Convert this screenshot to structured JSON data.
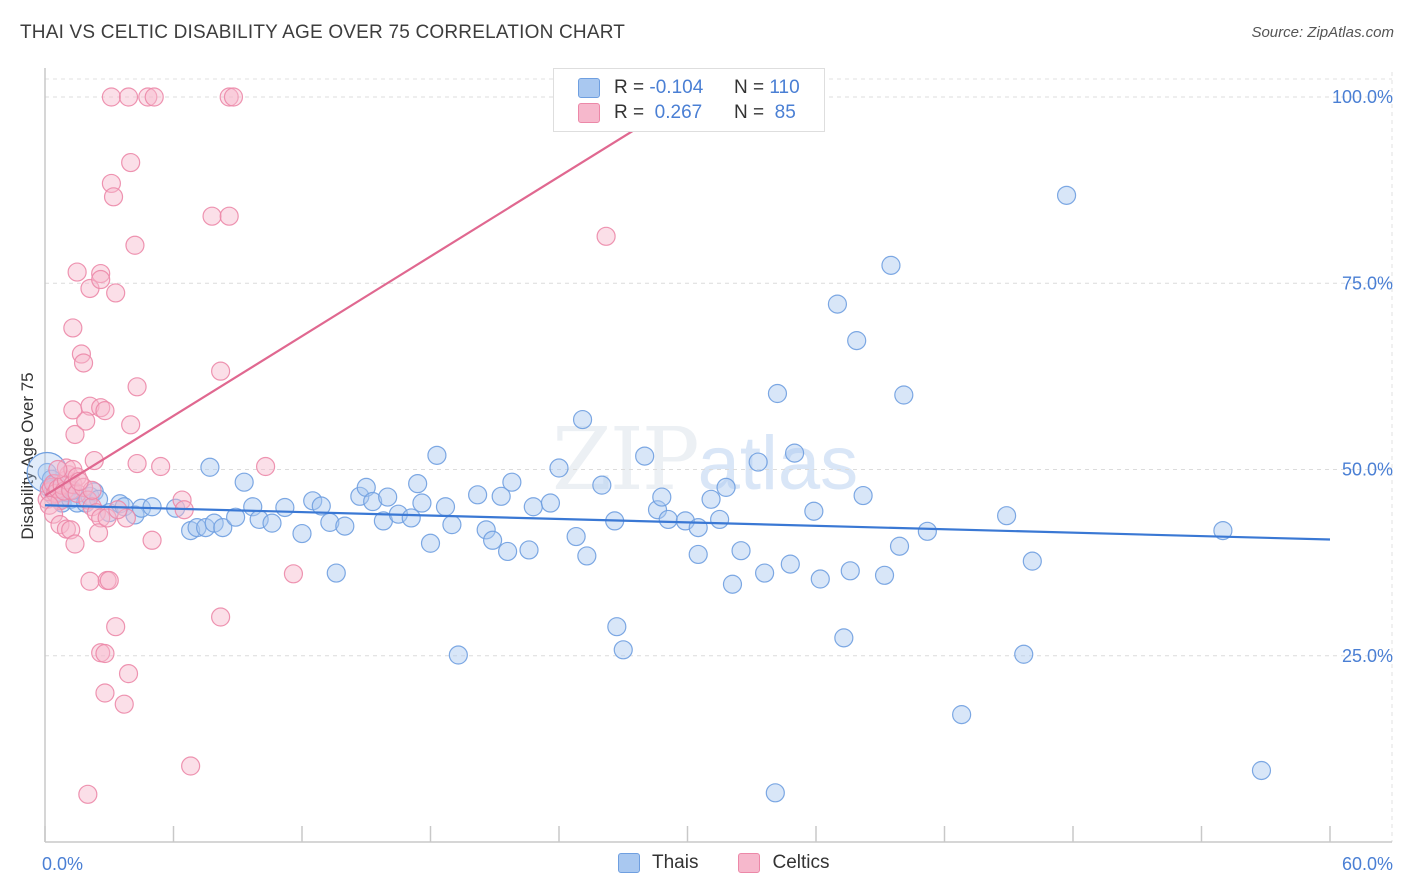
{
  "header": {
    "title": "THAI VS CELTIC DISABILITY AGE OVER 75 CORRELATION CHART",
    "source": "Source: ZipAtlas.com"
  },
  "legend": {
    "rows": [
      {
        "r_label": "R =",
        "r_value": "-0.104",
        "n_label": "N =",
        "n_value": "110"
      },
      {
        "r_label": "R =",
        "r_value": "0.267",
        "n_label": "N =",
        "n_value": "85"
      }
    ],
    "series": [
      "Thais",
      "Celtics"
    ]
  },
  "watermark": {
    "zip": "ZIP",
    "atlas": "atlas"
  },
  "colors": {
    "thais_fill": "#a9c8f0",
    "thais_stroke": "#6f9fe0",
    "thais_line": "#3a78d4",
    "celtics_fill": "#f6b8cc",
    "celtics_stroke": "#ec88a8",
    "celtics_line": "#e06890",
    "tick_text": "#4a7fd4"
  },
  "chart_data": {
    "type": "scatter",
    "title": "THAI VS CELTIC DISABILITY AGE OVER 75 CORRELATION CHART",
    "xlabel": "",
    "ylabel": "Disability Age Over 75",
    "xlim": [
      0,
      60
    ],
    "ylim": [
      0,
      104
    ],
    "x_tick_labels": [
      "0.0%",
      "60.0%"
    ],
    "y_ticks": [
      25,
      50,
      75,
      100
    ],
    "y_tick_labels": [
      "25.0%",
      "50.0%",
      "75.0%",
      "100.0%"
    ],
    "grid": true,
    "series": [
      {
        "name": "Thais",
        "r": -0.104,
        "n": 110,
        "trend": {
          "x": [
            0,
            60
          ],
          "y": [
            45.2,
            40.6
          ]
        },
        "points": [
          [
            0.1,
            49.6
          ],
          [
            0.2,
            47.5
          ],
          [
            0.3,
            48.7
          ],
          [
            0.4,
            46.5
          ],
          [
            0.5,
            48.1
          ],
          [
            0.6,
            47.0
          ],
          [
            0.7,
            46.0
          ],
          [
            0.8,
            45.5
          ],
          [
            1.0,
            46.9
          ],
          [
            1.2,
            46.0
          ],
          [
            1.5,
            45.5
          ],
          [
            1.9,
            45.5
          ],
          [
            2.1,
            46.4
          ],
          [
            2.3,
            47.0
          ],
          [
            2.5,
            46.0
          ],
          [
            3.0,
            44.2
          ],
          [
            3.5,
            45.4
          ],
          [
            3.7,
            45.0
          ],
          [
            4.2,
            43.9
          ],
          [
            4.5,
            44.8
          ],
          [
            5.0,
            45.0
          ],
          [
            6.1,
            44.8
          ],
          [
            6.8,
            41.8
          ],
          [
            7.1,
            42.2
          ],
          [
            7.5,
            42.2
          ],
          [
            7.7,
            50.3
          ],
          [
            7.9,
            42.8
          ],
          [
            8.3,
            42.2
          ],
          [
            8.9,
            43.6
          ],
          [
            9.3,
            48.3
          ],
          [
            9.7,
            45.0
          ],
          [
            10.0,
            43.3
          ],
          [
            10.6,
            42.8
          ],
          [
            11.2,
            44.9
          ],
          [
            12.0,
            41.4
          ],
          [
            12.5,
            45.8
          ],
          [
            12.9,
            45.1
          ],
          [
            13.3,
            42.9
          ],
          [
            13.6,
            36.1
          ],
          [
            14.0,
            42.4
          ],
          [
            14.7,
            46.4
          ],
          [
            15.0,
            47.6
          ],
          [
            15.3,
            45.7
          ],
          [
            15.8,
            43.1
          ],
          [
            16.0,
            46.3
          ],
          [
            16.5,
            44.0
          ],
          [
            17.1,
            43.5
          ],
          [
            17.4,
            48.1
          ],
          [
            17.6,
            45.5
          ],
          [
            18.0,
            40.1
          ],
          [
            18.3,
            51.9
          ],
          [
            18.7,
            45.0
          ],
          [
            19.0,
            42.6
          ],
          [
            19.3,
            25.1
          ],
          [
            20.2,
            46.6
          ],
          [
            20.6,
            41.9
          ],
          [
            20.9,
            40.5
          ],
          [
            21.3,
            46.4
          ],
          [
            21.6,
            39.0
          ],
          [
            21.8,
            48.3
          ],
          [
            22.6,
            39.2
          ],
          [
            22.8,
            45.0
          ],
          [
            23.6,
            45.5
          ],
          [
            24.0,
            50.2
          ],
          [
            24.8,
            41.0
          ],
          [
            25.3,
            38.4
          ],
          [
            25.1,
            56.7
          ],
          [
            26.0,
            47.9
          ],
          [
            26.6,
            43.1
          ],
          [
            26.7,
            28.9
          ],
          [
            27.0,
            25.8
          ],
          [
            28.0,
            51.8
          ],
          [
            28.6,
            44.6
          ],
          [
            28.8,
            46.3
          ],
          [
            29.1,
            43.3
          ],
          [
            29.9,
            43.1
          ],
          [
            30.5,
            38.6
          ],
          [
            30.5,
            42.2
          ],
          [
            31.1,
            46.0
          ],
          [
            31.5,
            43.3
          ],
          [
            31.8,
            47.6
          ],
          [
            32.1,
            34.6
          ],
          [
            32.5,
            39.1
          ],
          [
            33.3,
            51.0
          ],
          [
            33.6,
            36.1
          ],
          [
            34.2,
            60.2
          ],
          [
            34.8,
            37.3
          ],
          [
            35.0,
            52.2
          ],
          [
            35.9,
            44.4
          ],
          [
            36.2,
            35.3
          ],
          [
            37.0,
            72.2
          ],
          [
            37.3,
            27.4
          ],
          [
            37.6,
            36.4
          ],
          [
            37.9,
            67.3
          ],
          [
            38.2,
            46.5
          ],
          [
            39.2,
            35.8
          ],
          [
            39.5,
            77.4
          ],
          [
            39.9,
            39.7
          ],
          [
            40.1,
            60.0
          ],
          [
            41.2,
            41.7
          ],
          [
            42.8,
            17.1
          ],
          [
            44.9,
            43.8
          ],
          [
            45.7,
            25.2
          ],
          [
            46.1,
            37.7
          ],
          [
            47.7,
            86.8
          ],
          [
            55.0,
            41.8
          ],
          [
            56.8,
            9.6
          ],
          [
            34.1,
            6.6
          ],
          [
            0.4,
            47.4
          ],
          [
            1.3,
            47.2
          ]
        ]
      },
      {
        "name": "Celtics",
        "r": 0.267,
        "n": 85,
        "trend": {
          "x": [
            0,
            30
          ],
          "y": [
            46.5,
            100
          ]
        },
        "points": [
          [
            0.1,
            46.0
          ],
          [
            0.2,
            47.0
          ],
          [
            0.3,
            47.6
          ],
          [
            0.4,
            48.1
          ],
          [
            0.5,
            46.8
          ],
          [
            0.6,
            47.4
          ],
          [
            0.7,
            45.8
          ],
          [
            0.8,
            47.9
          ],
          [
            0.9,
            47.1
          ],
          [
            1.0,
            48.6
          ],
          [
            1.1,
            49.3
          ],
          [
            1.2,
            47.2
          ],
          [
            1.3,
            48.0
          ],
          [
            1.5,
            46.8
          ],
          [
            0.2,
            45.2
          ],
          [
            0.4,
            44.0
          ],
          [
            0.7,
            42.6
          ],
          [
            1.0,
            42.0
          ],
          [
            1.2,
            41.9
          ],
          [
            1.4,
            40.0
          ],
          [
            1.0,
            50.2
          ],
          [
            1.3,
            50.0
          ],
          [
            1.5,
            49.0
          ],
          [
            1.8,
            47.6
          ],
          [
            2.0,
            45.9
          ],
          [
            2.2,
            45.0
          ],
          [
            2.4,
            44.2
          ],
          [
            2.6,
            43.5
          ],
          [
            2.5,
            41.5
          ],
          [
            2.9,
            43.5
          ],
          [
            2.3,
            51.2
          ],
          [
            1.4,
            54.7
          ],
          [
            1.3,
            58.0
          ],
          [
            2.1,
            58.5
          ],
          [
            2.6,
            58.3
          ],
          [
            2.8,
            57.9
          ],
          [
            1.9,
            56.5
          ],
          [
            4.0,
            56.0
          ],
          [
            1.3,
            69.0
          ],
          [
            1.7,
            65.5
          ],
          [
            1.8,
            64.3
          ],
          [
            1.5,
            76.5
          ],
          [
            2.1,
            74.3
          ],
          [
            2.6,
            76.3
          ],
          [
            2.6,
            75.5
          ],
          [
            3.3,
            73.7
          ],
          [
            4.3,
            61.1
          ],
          [
            4.2,
            80.1
          ],
          [
            3.1,
            88.4
          ],
          [
            4.0,
            91.2
          ],
          [
            3.2,
            86.6
          ],
          [
            3.1,
            100.0
          ],
          [
            3.9,
            100.0
          ],
          [
            4.8,
            100.0
          ],
          [
            5.1,
            100.0
          ],
          [
            8.6,
            100.0
          ],
          [
            8.8,
            100.0
          ],
          [
            7.8,
            84.0
          ],
          [
            8.6,
            84.0
          ],
          [
            8.2,
            63.2
          ],
          [
            10.3,
            50.4
          ],
          [
            6.4,
            45.9
          ],
          [
            6.5,
            44.6
          ],
          [
            5.4,
            50.4
          ],
          [
            4.3,
            50.8
          ],
          [
            5.0,
            40.5
          ],
          [
            2.9,
            35.1
          ],
          [
            3.0,
            35.1
          ],
          [
            2.1,
            35.0
          ],
          [
            11.6,
            36.0
          ],
          [
            8.2,
            30.2
          ],
          [
            3.3,
            28.9
          ],
          [
            2.6,
            25.4
          ],
          [
            2.8,
            25.3
          ],
          [
            3.9,
            22.6
          ],
          [
            2.8,
            20.0
          ],
          [
            3.7,
            18.5
          ],
          [
            6.8,
            10.2
          ],
          [
            2.0,
            6.4
          ],
          [
            26.2,
            81.3
          ],
          [
            3.8,
            43.5
          ],
          [
            3.4,
            44.6
          ],
          [
            2.2,
            47.2
          ],
          [
            1.6,
            48.4
          ],
          [
            0.6,
            50.0
          ]
        ]
      }
    ]
  }
}
